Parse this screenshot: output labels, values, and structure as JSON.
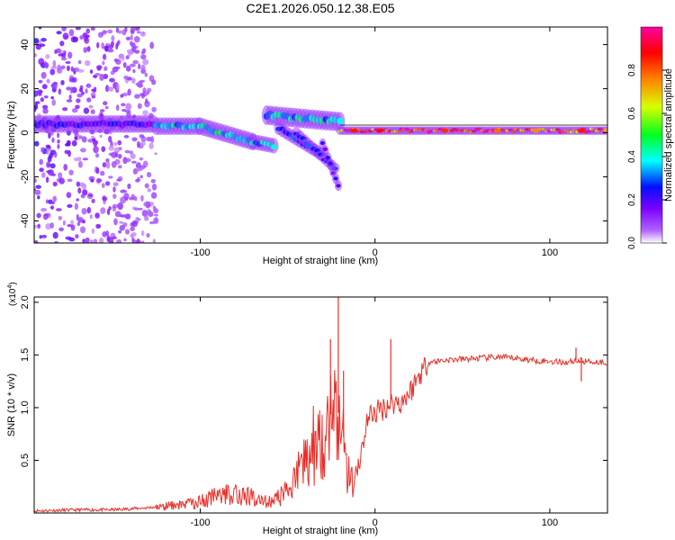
{
  "title": "C2E1.2026.050.12.38.E05",
  "chart_data": [
    {
      "type": "heatmap",
      "name": "spectrogram",
      "xlabel": "Height of straight line (km)",
      "ylabel": "Frequency (Hz)",
      "xlim": [
        -195,
        133
      ],
      "ylim": [
        -50,
        48
      ],
      "xticks": [
        -100,
        0,
        100
      ],
      "yticks": [
        -40,
        -20,
        0,
        20,
        40
      ],
      "xtick_labels": [
        "-100",
        "0",
        "100"
      ],
      "ytick_labels": [
        "-40",
        "-20",
        "0",
        "20",
        "40"
      ],
      "colorbar": {
        "label": "Normalized spectral amplitude",
        "range": [
          0,
          1
        ],
        "ticks": [
          0.0,
          0.2,
          0.4,
          0.6,
          0.8
        ],
        "tick_labels": [
          "0.0",
          "0.2",
          "0.4",
          "0.6",
          "0.8"
        ],
        "colors": [
          "#ffffff",
          "#7a00ff",
          "#0010ff",
          "#00ffff",
          "#00ff20",
          "#d8ff00",
          "#ff8000",
          "#ff0000",
          "#ff00a0"
        ]
      },
      "bands": [
        {
          "x_range": [
            -195,
            -125
          ],
          "center_hz": 4,
          "width_hz": 8,
          "amplitude": 0.22
        },
        {
          "x_range": [
            -125,
            -62
          ],
          "center_hz": 2,
          "width_hz": 8,
          "amplitude": 0.4
        },
        {
          "x_range": [
            -62,
            -20
          ],
          "center_hz": 6,
          "width_hz": 10,
          "amplitude": 0.35
        },
        {
          "x_range": [
            -20,
            133
          ],
          "center_hz": 1,
          "width_hz": 4,
          "amplitude": 0.85
        }
      ],
      "noise_region_x": [
        -195,
        -125
      ]
    },
    {
      "type": "line",
      "name": "snr",
      "xlabel": "Height of straight line (km)",
      "ylabel": "SNR (10 * v/v)",
      "y_multiplier_label": "(x10",
      "y_multiplier_exp": "4",
      "xlim": [
        -195,
        133
      ],
      "ylim": [
        0,
        2.05
      ],
      "xticks": [
        -100,
        0,
        100
      ],
      "yticks": [
        0.5,
        1.0,
        1.5,
        2.0
      ],
      "xtick_labels": [
        "-100",
        "0",
        "100"
      ],
      "ytick_labels": [
        "0.5",
        "1.0",
        "1.5",
        "2.0"
      ],
      "color": "#e8302a",
      "series": [
        {
          "name": "SNR",
          "x": [
            -195,
            -170,
            -150,
            -130,
            -120,
            -110,
            -100,
            -90,
            -80,
            -70,
            -60,
            -55,
            -50,
            -45,
            -40,
            -35,
            -30,
            -25,
            -20,
            -15,
            -12,
            -8,
            -5,
            -2,
            0,
            5,
            10,
            15,
            20,
            25,
            30,
            40,
            50,
            60,
            70,
            80,
            90,
            100,
            110,
            115,
            120,
            133
          ],
          "y": [
            0.02,
            0.03,
            0.03,
            0.05,
            0.07,
            0.09,
            0.12,
            0.18,
            0.22,
            0.16,
            0.12,
            0.16,
            0.25,
            0.38,
            0.55,
            0.72,
            0.8,
            0.95,
            0.95,
            0.38,
            0.35,
            0.55,
            0.85,
            0.95,
            0.95,
            1.0,
            1.05,
            1.05,
            1.15,
            1.3,
            1.43,
            1.45,
            1.46,
            1.47,
            1.48,
            1.47,
            1.45,
            1.44,
            1.43,
            1.45,
            1.44,
            1.43
          ]
        }
      ],
      "spikes": [
        {
          "x": -25.5,
          "y": 1.65
        },
        {
          "x": -21,
          "y": 2.05
        },
        {
          "x": -18,
          "y": 1.35
        },
        {
          "x": 9,
          "y": 1.65
        },
        {
          "x": 115,
          "y": 1.57
        },
        {
          "x": 118,
          "y": 1.25
        }
      ]
    }
  ]
}
